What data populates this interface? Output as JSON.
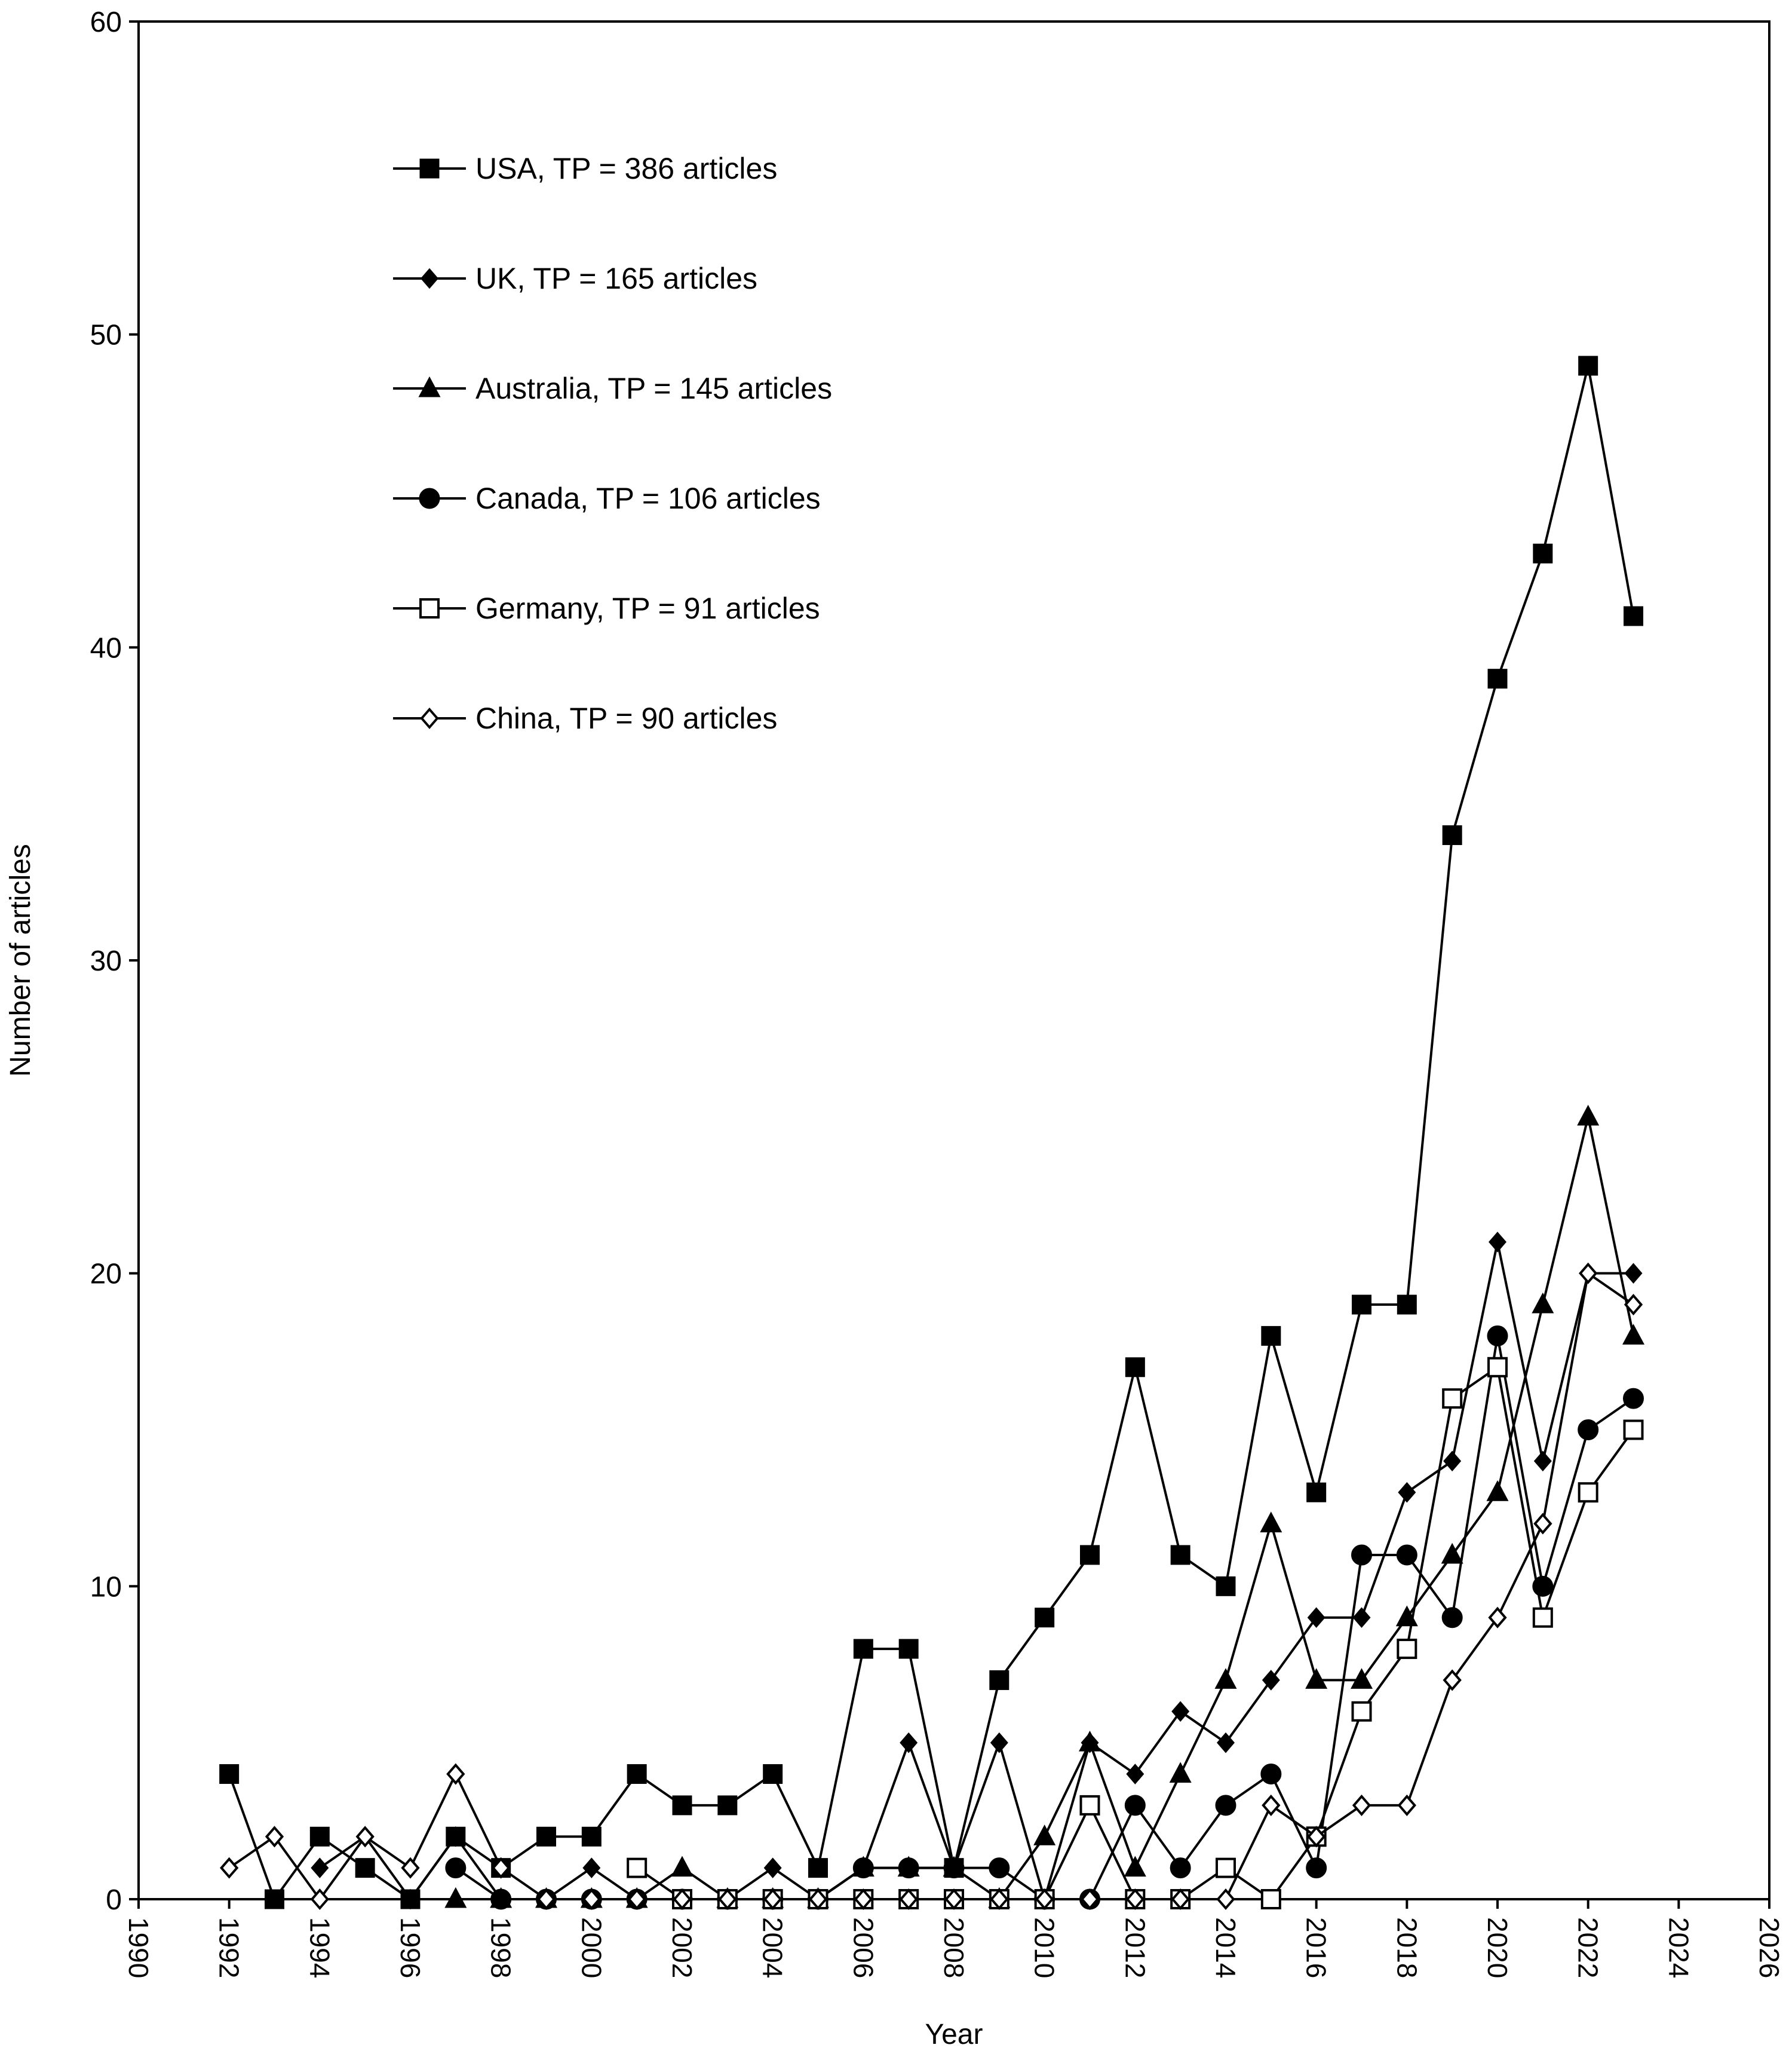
{
  "chart_data": {
    "type": "line",
    "title": "",
    "xlabel": "Year",
    "ylabel": "Number of articles",
    "xlim": [
      1990,
      2026
    ],
    "ylim": [
      0,
      60
    ],
    "xticks": [
      1990,
      1992,
      1994,
      1996,
      1998,
      2000,
      2002,
      2004,
      2006,
      2008,
      2010,
      2012,
      2014,
      2016,
      2018,
      2020,
      2022,
      2024,
      2026
    ],
    "yticks": [
      0,
      10,
      20,
      30,
      40,
      50,
      60
    ],
    "grid": false,
    "legend_position": "top-left",
    "series": [
      {
        "name": "USA, TP = 386 articles",
        "marker": "square-filled",
        "x": [
          1992,
          1993,
          1994,
          1995,
          1996,
          1997,
          1998,
          1999,
          2000,
          2001,
          2002,
          2003,
          2004,
          2005,
          2006,
          2007,
          2008,
          2009,
          2010,
          2011,
          2012,
          2013,
          2014,
          2015,
          2016,
          2017,
          2018,
          2019,
          2020,
          2021,
          2022,
          2023
        ],
        "y": [
          4,
          0,
          2,
          1,
          0,
          2,
          1,
          2,
          2,
          4,
          3,
          3,
          4,
          1,
          8,
          8,
          1,
          7,
          9,
          11,
          17,
          11,
          10,
          18,
          13,
          19,
          19,
          34,
          39,
          43,
          49,
          41
        ]
      },
      {
        "name": "UK, TP = 165 articles",
        "marker": "diamond-filled",
        "x": [
          1994,
          1995,
          1996,
          1997,
          1998,
          1999,
          2000,
          2001,
          2002,
          2003,
          2004,
          2005,
          2006,
          2007,
          2008,
          2009,
          2010,
          2011,
          2012,
          2013,
          2014,
          2015,
          2016,
          2017,
          2018,
          2019,
          2020,
          2021,
          2022,
          2023
        ],
        "y": [
          1,
          2,
          0,
          2,
          0,
          0,
          1,
          0,
          0,
          0,
          1,
          0,
          1,
          5,
          1,
          5,
          0,
          5,
          4,
          6,
          5,
          7,
          9,
          9,
          13,
          14,
          21,
          14,
          20,
          20
        ]
      },
      {
        "name": "Australia, TP = 145 articles",
        "marker": "triangle-filled",
        "x": [
          1997,
          1998,
          1999,
          2000,
          2001,
          2002,
          2003,
          2004,
          2005,
          2006,
          2007,
          2008,
          2009,
          2010,
          2011,
          2012,
          2013,
          2014,
          2015,
          2016,
          2017,
          2018,
          2019,
          2020,
          2021,
          2022,
          2023
        ],
        "y": [
          0,
          0,
          0,
          0,
          0,
          1,
          0,
          0,
          0,
          1,
          1,
          1,
          0,
          2,
          5,
          1,
          4,
          7,
          12,
          7,
          7,
          9,
          11,
          13,
          19,
          25,
          18
        ]
      },
      {
        "name": "Canada, TP = 106 articles",
        "marker": "circle-filled",
        "x": [
          1997,
          1998,
          1999,
          2000,
          2001,
          2002,
          2003,
          2004,
          2005,
          2006,
          2007,
          2008,
          2009,
          2010,
          2011,
          2012,
          2013,
          2014,
          2015,
          2016,
          2017,
          2018,
          2019,
          2020,
          2021,
          2022,
          2023
        ],
        "y": [
          1,
          0,
          0,
          0,
          0,
          0,
          0,
          0,
          0,
          1,
          1,
          1,
          1,
          0,
          0,
          3,
          1,
          3,
          4,
          1,
          11,
          11,
          9,
          18,
          10,
          15,
          16
        ]
      },
      {
        "name": "Germany, TP = 91 articles",
        "marker": "square-open",
        "x": [
          2001,
          2002,
          2003,
          2004,
          2005,
          2006,
          2007,
          2008,
          2009,
          2010,
          2011,
          2012,
          2013,
          2014,
          2015,
          2016,
          2017,
          2018,
          2019,
          2020,
          2021,
          2022,
          2023
        ],
        "y": [
          1,
          0,
          0,
          0,
          0,
          0,
          0,
          0,
          0,
          0,
          3,
          0,
          0,
          1,
          0,
          2,
          6,
          8,
          16,
          17,
          9,
          13,
          15
        ]
      },
      {
        "name": "China, TP = 90 articles",
        "marker": "diamond-open",
        "x": [
          1992,
          1993,
          1994,
          1995,
          1996,
          1997,
          1998,
          1999,
          2000,
          2001,
          2002,
          2003,
          2004,
          2005,
          2006,
          2007,
          2008,
          2009,
          2010,
          2011,
          2012,
          2013,
          2014,
          2015,
          2016,
          2017,
          2018,
          2019,
          2020,
          2021,
          2022,
          2023
        ],
        "y": [
          1,
          2,
          0,
          2,
          1,
          4,
          1,
          0,
          0,
          0,
          0,
          0,
          0,
          0,
          0,
          0,
          0,
          0,
          0,
          0,
          0,
          0,
          0,
          3,
          2,
          3,
          3,
          7,
          9,
          12,
          20,
          19
        ]
      }
    ]
  }
}
